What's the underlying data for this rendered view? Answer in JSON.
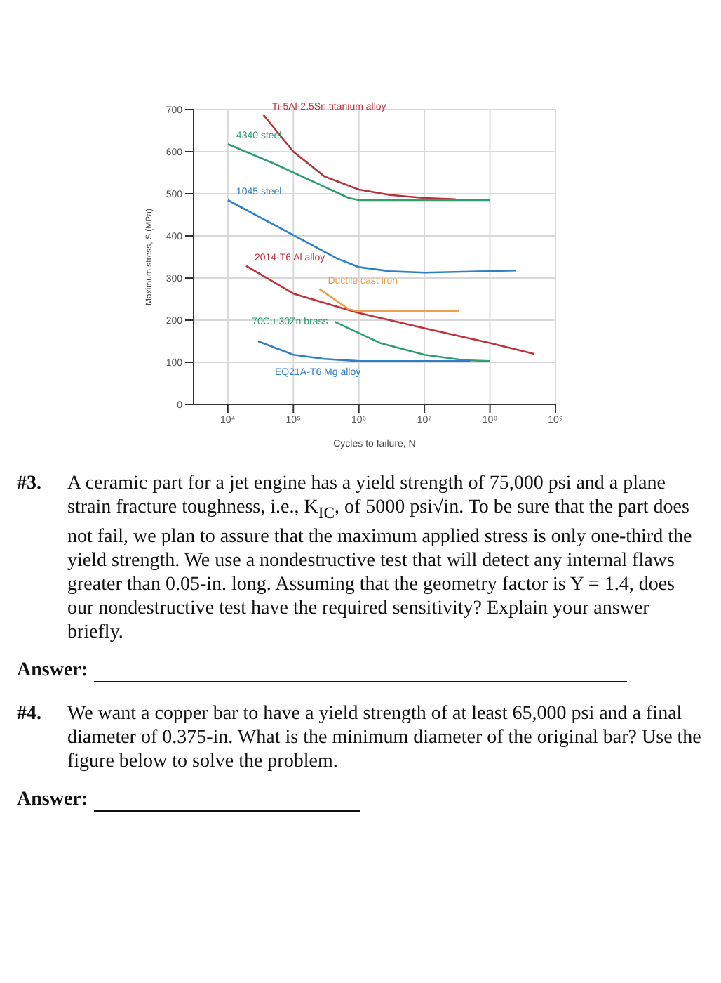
{
  "chart_data": {
    "type": "line",
    "xlabel": "Cycles to failure, N",
    "ylabel": "Maximum stress, S (MPa)",
    "log": "x",
    "grid": true,
    "legend": false,
    "marker": "none",
    "line_style": "solid",
    "xlim": [
      3000,
      1000000000
    ],
    "xticks": [
      {
        "value": 10000,
        "label": "10⁴"
      },
      {
        "value": 100000,
        "label": "10⁵"
      },
      {
        "value": 1000000,
        "label": "10⁶"
      },
      {
        "value": 10000000,
        "label": "10⁷"
      },
      {
        "value": 100000000,
        "label": "10⁸"
      },
      {
        "value": 1000000000,
        "label": "10⁹"
      }
    ],
    "ylim": [
      0,
      700
    ],
    "yticks": [
      0,
      100,
      200,
      300,
      400,
      500,
      600,
      700
    ],
    "series": [
      {
        "name": "Ti-5Al-2.5Sn titanium alloy",
        "color": "#b5333a",
        "x": [
          35000,
          100000,
          300000,
          1000000,
          3000000,
          10000000,
          30000000
        ],
        "values": [
          687,
          600,
          541,
          510,
          497,
          490,
          487
        ]
      },
      {
        "name": "4340 steel",
        "color": "#2e9e6e",
        "x": [
          10000,
          50000,
          220000,
          700000,
          1000000,
          100000000
        ],
        "values": [
          618,
          572,
          526,
          490,
          485,
          485
        ]
      },
      {
        "name": "1045 steel",
        "color": "#2f7fc4",
        "x": [
          10000,
          100000,
          470000,
          1000000,
          3000000,
          10000000,
          250000000
        ],
        "values": [
          485,
          402,
          346,
          326,
          316,
          313,
          318
        ]
      },
      {
        "name": "2014-T6 Al alloy",
        "color": "#c0313a",
        "x": [
          19000,
          100000,
          1000000,
          10000000,
          100000000,
          470000000
        ],
        "values": [
          329,
          263,
          217,
          181,
          146,
          120
        ]
      },
      {
        "name": "Ductile cast iron",
        "color": "#f0a04a",
        "x": [
          250000,
          700000,
          1000000,
          34000000
        ],
        "values": [
          274,
          226,
          221,
          221
        ]
      },
      {
        "name": "70Cu-30Zn brass",
        "color": "#2e9e6e",
        "x": [
          430000,
          2100000,
          10000000,
          40000000,
          100000000
        ],
        "values": [
          196,
          146,
          118,
          105,
          103
        ]
      },
      {
        "name": "EQ21A-T6 Mg alloy",
        "color": "#2f7fc4",
        "x": [
          29000,
          100000,
          300000,
          1000000,
          50000000
        ],
        "values": [
          150,
          118,
          108,
          103,
          103
        ]
      }
    ],
    "annotations": [
      "#3. A ceramic part for a jet engine has a yield strength of 75,000 psi and a plane strain fracture toughness, i.e., K$_{IC}$, of 5000 psi√in. To be sure that the part does not fail, we plan to assure that the maximum applied stress is only one-third the yield strength. We use a nondestructive test that will detect any internal flaws greater than 0.05-in. long. Assuming that the geometry factor is Y = 1.4, does our nondestructive test have the required sensitivity? Explain your answer briefly.",
      "Answer:",
      "#4. We want a copper bar to have a yield strength of at least 65,000 psi and a final diameter of 0.375-in. What is the minimum diameter of the original bar? Use the figure below to solve the problem.",
      "Answer:"
    ]
  }
}
